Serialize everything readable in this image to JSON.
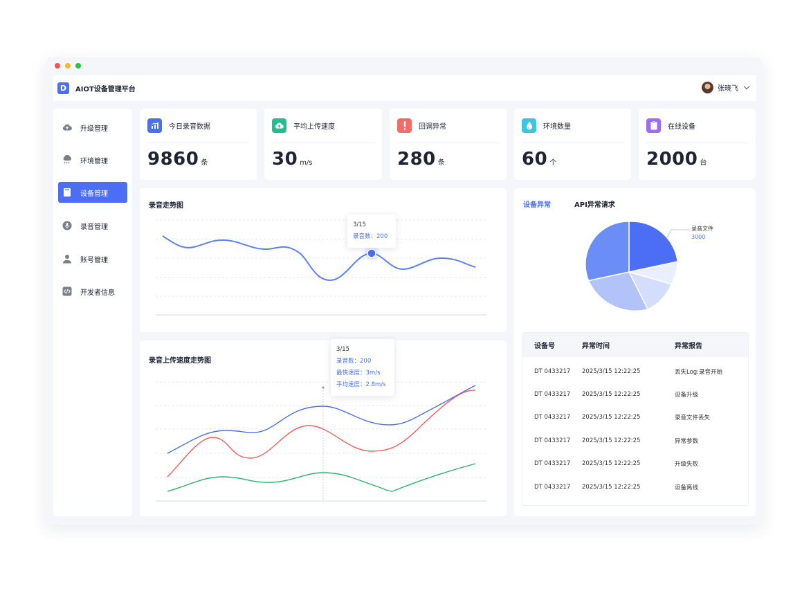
{
  "app": {
    "logo_letter": "D",
    "title": "AIOT设备管理平台"
  },
  "user": {
    "name": "张晓飞"
  },
  "colors": {
    "accent": "#4c6ef5",
    "red_series": "#f25d5d",
    "green_series": "#2bb36a"
  },
  "sidebar": {
    "items": [
      {
        "label": "升级管理",
        "icon": "cloud-upload-icon"
      },
      {
        "label": "环境管理",
        "icon": "cloud-rain-icon"
      },
      {
        "label": "设备管理",
        "icon": "device-icon",
        "active": true
      },
      {
        "label": "录音管理",
        "icon": "microphone-icon"
      },
      {
        "label": "账号管理",
        "icon": "user-icon"
      },
      {
        "label": "开发者信息",
        "icon": "code-icon"
      }
    ]
  },
  "stats": [
    {
      "label": "今日录音数据",
      "value": "9860",
      "unit": "条",
      "icon": "bar-chart-icon",
      "color": "#4c6ef5"
    },
    {
      "label": "平均上传速度",
      "value": "30",
      "unit": "m/s",
      "icon": "cloud-upload-icon",
      "color": "#1fbf8f"
    },
    {
      "label": "回调异常",
      "value": "280",
      "unit": "条",
      "icon": "alert-icon",
      "color": "#f46b6b"
    },
    {
      "label": "环境数量",
      "value": "60",
      "unit": "个",
      "icon": "water-drop-icon",
      "color": "#3cc6e0"
    },
    {
      "label": "在线设备",
      "value": "2000",
      "unit": "台",
      "icon": "clipboard-icon",
      "color": "#9b6cf5"
    }
  ],
  "recording_trend": {
    "title": "录音走势图",
    "tooltip": {
      "date": "3/15",
      "line1": "录音数：200"
    }
  },
  "upload_trend": {
    "title": "录音上传速度走势图",
    "tooltip": {
      "date": "3/15",
      "line1": "录音数：200",
      "line2": "最快速度：3m/s",
      "line3": "平均速度：2.8m/s"
    }
  },
  "exceptions": {
    "tab_active": "设备异常",
    "tab_other": "API异常请求",
    "pie_label": "录音文件",
    "pie_value": "3000",
    "table": {
      "headers": [
        "设备号",
        "异常时间",
        "异常报告"
      ],
      "rows": [
        {
          "device": "DT 0433217",
          "time": "2025/3/15  12:22:25",
          "report": "丢失Log:录音开始"
        },
        {
          "device": "DT 0433217",
          "time": "2025/3/15  12:22:25",
          "report": "设备升级"
        },
        {
          "device": "DT 0433217",
          "time": "2025/3/15  12:22:25",
          "report": "录音文件丢失"
        },
        {
          "device": "DT 0433217",
          "time": "2025/3/15  12:22:25",
          "report": "异常参数"
        },
        {
          "device": "DT 0433217",
          "time": "2025/3/15  12:22:25",
          "report": "升级失败"
        },
        {
          "device": "DT 0433217",
          "time": "2025/3/15  12:22:25",
          "report": "设备离线"
        }
      ]
    }
  }
}
